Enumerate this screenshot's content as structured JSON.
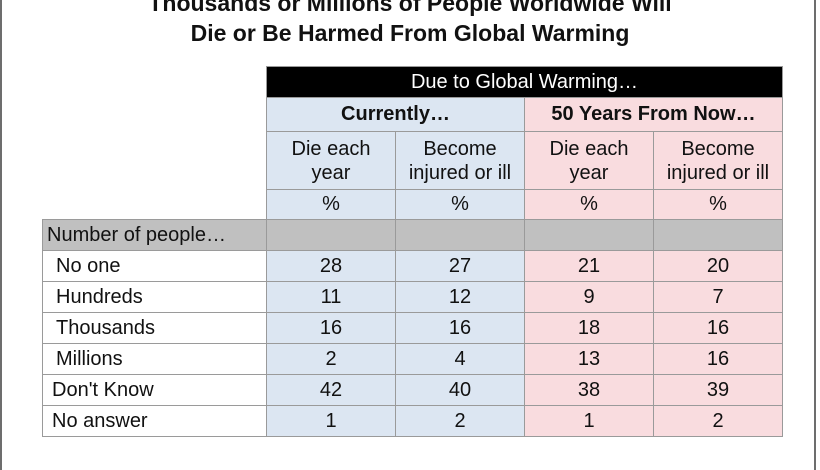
{
  "chart_data": {
    "type": "table",
    "title": "Thousands or Millions of People Worldwide Will Die or Be Harmed From Global Warming",
    "title_lines": [
      "Thousands or Millions of People Worldwide Will",
      "Die or Be Harmed From Global Warming"
    ],
    "super_header": "Due to Global Warming…",
    "groups": [
      "Currently…",
      "50 Years From Now…"
    ],
    "columns": [
      "Die each year",
      "Become injured or ill",
      "Die each year",
      "Become injured or ill"
    ],
    "column_lines": [
      [
        "Die each",
        "year"
      ],
      [
        "Become",
        "injured or ill"
      ],
      [
        "Die each",
        "year"
      ],
      [
        "Become",
        "injured or ill"
      ]
    ],
    "unit_row": [
      "%",
      "%",
      "%",
      "%"
    ],
    "section_label": "Number of people…",
    "rows": [
      {
        "label": "No one",
        "values": [
          "28",
          "27",
          "21",
          "20"
        ]
      },
      {
        "label": "Hundreds",
        "values": [
          "11",
          "12",
          "9",
          "7"
        ]
      },
      {
        "label": "Thousands",
        "values": [
          "16",
          "16",
          "18",
          "16"
        ]
      },
      {
        "label": "Millions",
        "values": [
          "2",
          "4",
          "13",
          "16"
        ]
      },
      {
        "label": "Don't Know",
        "values": [
          "42",
          "40",
          "38",
          "39"
        ]
      },
      {
        "label": "No answer",
        "values": [
          "1",
          "2",
          "1",
          "2"
        ]
      }
    ],
    "colors": {
      "current": "#dce6f2",
      "future": "#f9dcdf",
      "section": "#c0c0c0",
      "super_header": "#000000"
    }
  }
}
